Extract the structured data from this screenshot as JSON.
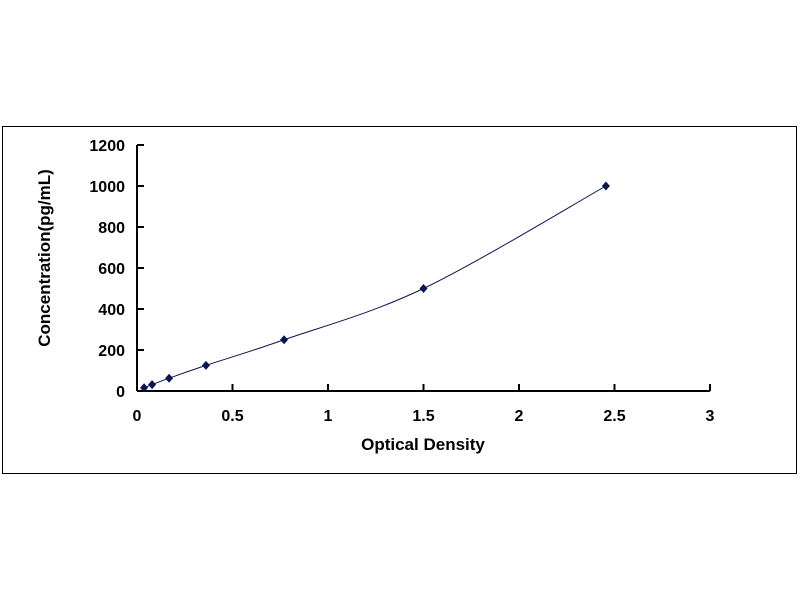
{
  "chart_data": {
    "type": "scatter",
    "title": "",
    "xlabel": "Optical Density",
    "ylabel": "Concentration(pg/mL)",
    "xlim": [
      0,
      3
    ],
    "ylim": [
      0,
      1200
    ],
    "x_ticks": [
      "0",
      "0.5",
      "1",
      "1.5",
      "2",
      "2.5",
      "3"
    ],
    "y_ticks": [
      "0",
      "200",
      "400",
      "600",
      "800",
      "1000",
      "1200"
    ],
    "grid": false,
    "legend": "none",
    "series": [
      {
        "x": [
          0.037,
          0.079,
          0.168,
          0.361,
          0.77,
          1.5,
          2.455
        ],
        "y": [
          15.6,
          31.25,
          62.5,
          125,
          250,
          500,
          1000
        ],
        "marker": "diamond",
        "trendline": "smooth curve"
      }
    ],
    "colors": {
      "marker": "#0a1450",
      "line": "#0a1450"
    }
  }
}
